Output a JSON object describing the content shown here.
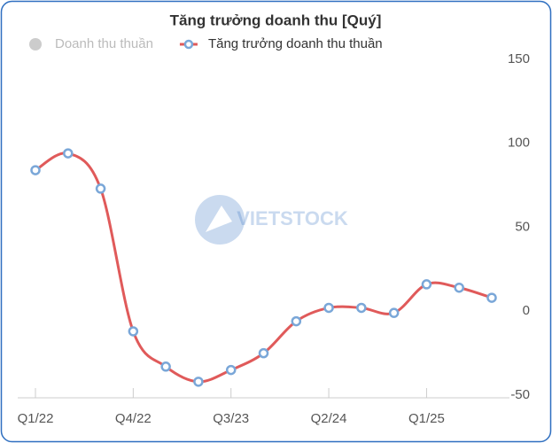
{
  "chart_data": {
    "type": "line",
    "title": "Tăng trưởng doanh thu [Quý]",
    "watermark": "VIETSTOCK",
    "categories": [
      "Q1/22",
      null,
      null,
      "Q4/22",
      null,
      null,
      "Q3/23",
      null,
      null,
      "Q2/24",
      null,
      null,
      "Q1/25",
      null,
      null
    ],
    "series": [
      {
        "name": "Doanh thu thuần",
        "color": "#cccccc",
        "visible": false
      },
      {
        "name": "Tăng trưởng doanh thu thuần",
        "color": "#e05a5a",
        "marker_color": "#7aa7d8",
        "visible": true,
        "values": [
          84,
          94,
          73,
          -12,
          -33,
          -42,
          -35,
          -25,
          -6,
          2,
          2,
          -1,
          16,
          14,
          8
        ]
      }
    ],
    "ylim": [
      -50,
      150
    ],
    "yticks": [
      -50,
      0,
      50,
      100,
      150
    ],
    "y_axis_side": "right",
    "grid": false
  }
}
